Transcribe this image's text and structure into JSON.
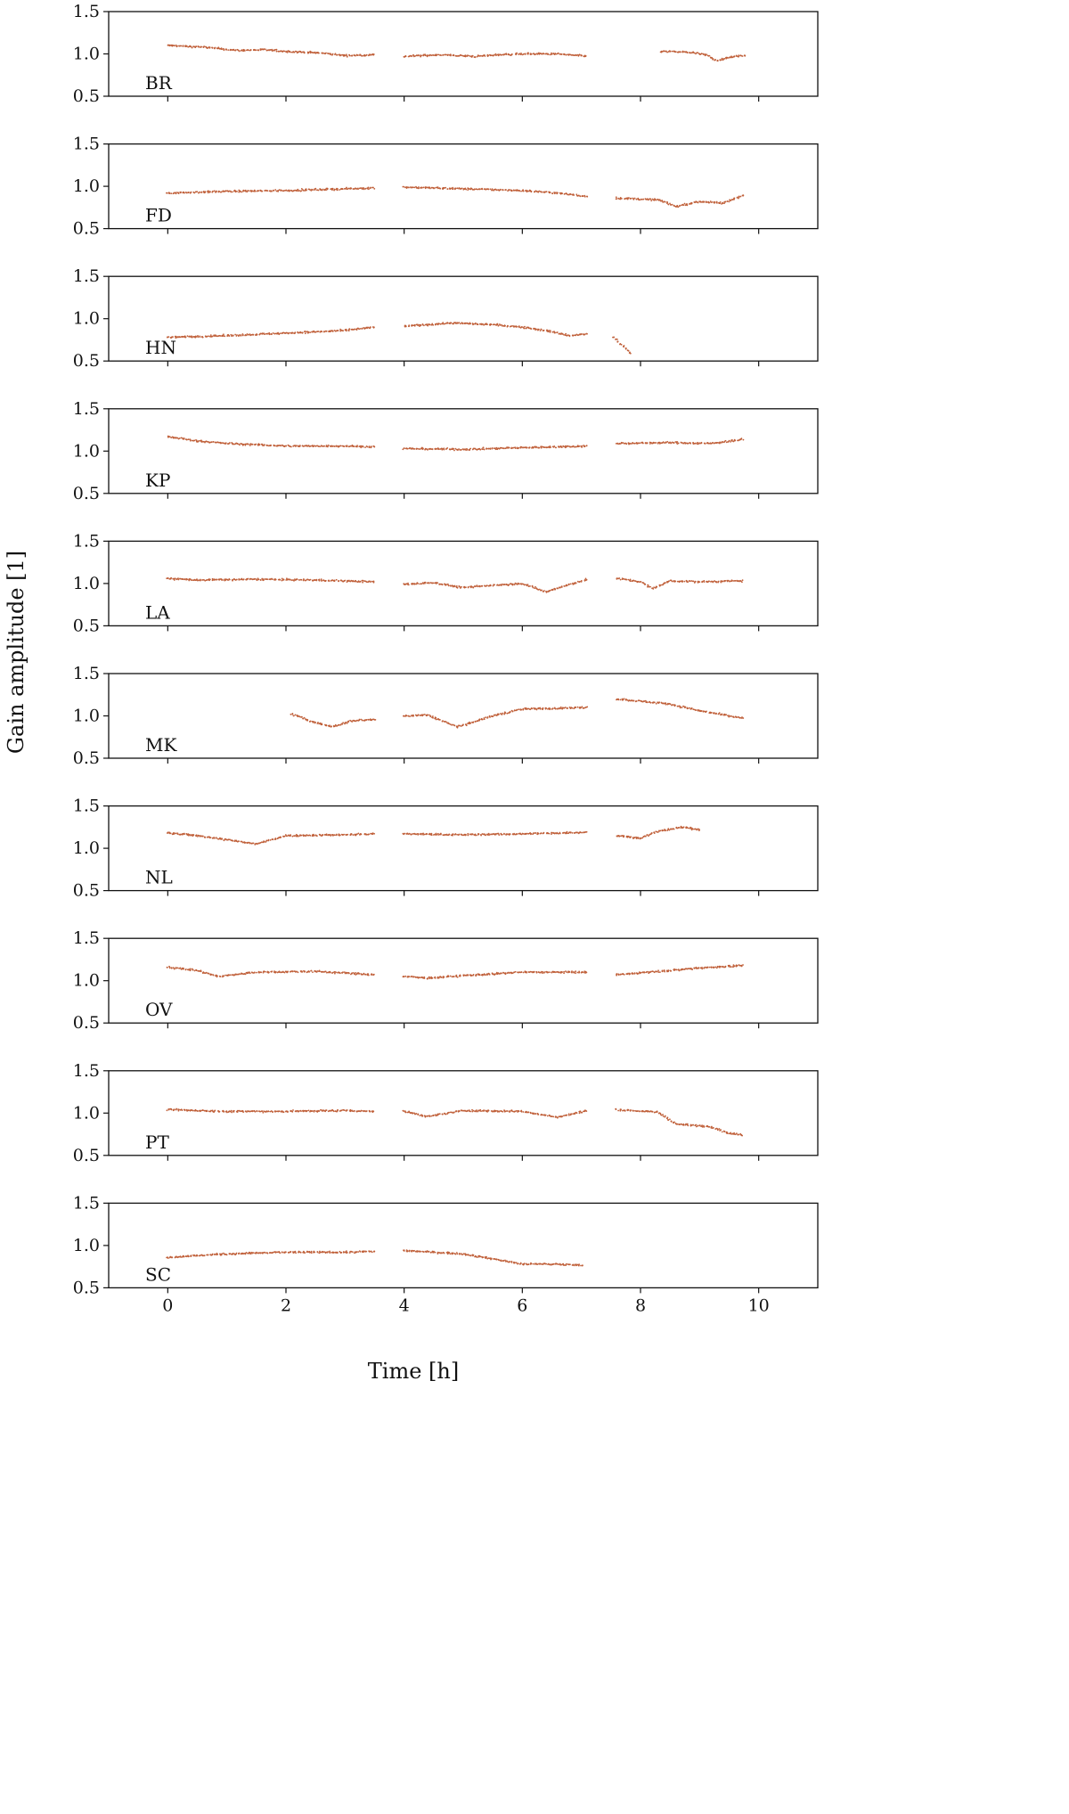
{
  "chart_data": {
    "type": "scatter",
    "layout": "10 vertically stacked panels sharing the x axis",
    "xlabel": "Time [h]",
    "ylabel": "Gain amplitude [1]",
    "xlim": [
      -1.0,
      11.0
    ],
    "ylim": [
      0.5,
      1.5
    ],
    "x_ticks": [
      {
        "value": 0,
        "label": "0"
      },
      {
        "value": 2,
        "label": "2"
      },
      {
        "value": 4,
        "label": "4"
      },
      {
        "value": 6,
        "label": "6"
      },
      {
        "value": 8,
        "label": "8"
      },
      {
        "value": 10,
        "label": "10"
      }
    ],
    "y_ticks": [
      {
        "value": 0.5,
        "label": "0.5"
      },
      {
        "value": 1.0,
        "label": "1.0"
      },
      {
        "value": 1.5,
        "label": "1.5"
      }
    ],
    "grid": false,
    "marker_color": "#c0603a",
    "sample_step_h": 0.04,
    "panels": [
      {
        "label": "BR",
        "segments": [
          {
            "x": [
              0.0,
              0.6,
              1.2,
              1.6,
              2.0,
              2.6,
              3.0,
              3.5
            ],
            "y": [
              1.1,
              1.08,
              1.04,
              1.05,
              1.03,
              1.01,
              0.98,
              0.99
            ]
          },
          {
            "x": [
              4.0,
              4.6,
              5.2,
              5.6,
              6.0,
              6.6,
              7.1
            ],
            "y": [
              0.97,
              0.99,
              0.97,
              0.99,
              1.0,
              1.0,
              0.97
            ]
          },
          {
            "x": [
              8.35,
              8.8,
              9.1,
              9.3,
              9.5,
              9.75
            ],
            "y": [
              1.03,
              1.02,
              0.99,
              0.92,
              0.96,
              0.98
            ]
          }
        ]
      },
      {
        "label": "FD",
        "segments": [
          {
            "x": [
              0.0,
              1.0,
              2.0,
              3.0,
              3.5
            ],
            "y": [
              0.92,
              0.94,
              0.95,
              0.97,
              0.98
            ]
          },
          {
            "x": [
              4.0,
              5.0,
              6.0,
              6.6,
              7.1
            ],
            "y": [
              0.99,
              0.97,
              0.95,
              0.92,
              0.88
            ]
          },
          {
            "x": [
              7.6,
              8.3,
              8.6,
              9.0,
              9.4,
              9.75
            ],
            "y": [
              0.86,
              0.84,
              0.76,
              0.82,
              0.8,
              0.9
            ]
          }
        ]
      },
      {
        "label": "HN",
        "segments": [
          {
            "x": [
              0.0,
              1.0,
              2.0,
              3.0,
              3.5
            ],
            "y": [
              0.78,
              0.8,
              0.83,
              0.86,
              0.9
            ]
          },
          {
            "x": [
              4.0,
              4.8,
              5.5,
              6.0,
              6.4,
              6.8,
              7.1
            ],
            "y": [
              0.91,
              0.95,
              0.93,
              0.9,
              0.86,
              0.8,
              0.82
            ]
          },
          {
            "x": [
              7.55,
              7.7,
              7.85
            ],
            "y": [
              0.78,
              0.68,
              0.58
            ]
          }
        ]
      },
      {
        "label": "KP",
        "segments": [
          {
            "x": [
              0.0,
              0.5,
              1.0,
              2.0,
              3.0,
              3.5
            ],
            "y": [
              1.17,
              1.12,
              1.09,
              1.06,
              1.06,
              1.05
            ]
          },
          {
            "x": [
              4.0,
              5.0,
              6.0,
              7.1
            ],
            "y": [
              1.03,
              1.02,
              1.04,
              1.06
            ]
          },
          {
            "x": [
              7.6,
              8.5,
              9.2,
              9.75
            ],
            "y": [
              1.09,
              1.1,
              1.09,
              1.14
            ]
          }
        ]
      },
      {
        "label": "LA",
        "segments": [
          {
            "x": [
              0.0,
              0.5,
              1.5,
              2.5,
              3.0,
              3.5
            ],
            "y": [
              1.06,
              1.04,
              1.05,
              1.04,
              1.03,
              1.02
            ]
          },
          {
            "x": [
              4.0,
              4.5,
              5.0,
              5.5,
              6.0,
              6.4,
              7.1
            ],
            "y": [
              0.99,
              1.01,
              0.95,
              0.98,
              1.0,
              0.9,
              1.05
            ]
          },
          {
            "x": [
              7.6,
              8.0,
              8.2,
              8.5,
              9.0,
              9.75
            ],
            "y": [
              1.06,
              1.02,
              0.94,
              1.03,
              1.02,
              1.03
            ]
          }
        ]
      },
      {
        "label": "MK",
        "segments": [
          {
            "x": [
              2.1,
              2.5,
              2.8,
              3.1,
              3.5
            ],
            "y": [
              1.02,
              0.92,
              0.87,
              0.94,
              0.96
            ]
          },
          {
            "x": [
              4.0,
              4.4,
              4.9,
              5.5,
              6.0,
              7.1
            ],
            "y": [
              1.0,
              1.01,
              0.87,
              1.0,
              1.08,
              1.1
            ]
          },
          {
            "x": [
              7.6,
              8.5,
              9.0,
              9.75
            ],
            "y": [
              1.2,
              1.14,
              1.06,
              0.97
            ]
          }
        ]
      },
      {
        "label": "NL",
        "segments": [
          {
            "x": [
              0.0,
              0.5,
              1.0,
              1.5,
              2.0,
              3.0,
              3.5
            ],
            "y": [
              1.18,
              1.15,
              1.1,
              1.05,
              1.15,
              1.16,
              1.17
            ]
          },
          {
            "x": [
              4.0,
              5.0,
              6.0,
              7.1
            ],
            "y": [
              1.17,
              1.16,
              1.17,
              1.19
            ]
          },
          {
            "x": [
              7.6,
              8.0,
              8.3,
              8.7,
              9.0
            ],
            "y": [
              1.15,
              1.12,
              1.2,
              1.25,
              1.22
            ]
          }
        ]
      },
      {
        "label": "OV",
        "segments": [
          {
            "x": [
              0.0,
              0.5,
              0.85,
              1.5,
              2.5,
              3.5
            ],
            "y": [
              1.16,
              1.12,
              1.05,
              1.1,
              1.11,
              1.07
            ]
          },
          {
            "x": [
              4.0,
              4.4,
              5.0,
              5.5,
              6.0,
              7.1
            ],
            "y": [
              1.05,
              1.03,
              1.06,
              1.08,
              1.1,
              1.1
            ]
          },
          {
            "x": [
              7.6,
              8.5,
              9.0,
              9.75
            ],
            "y": [
              1.07,
              1.12,
              1.15,
              1.18
            ]
          }
        ]
      },
      {
        "label": "PT",
        "segments": [
          {
            "x": [
              0.0,
              1.0,
              2.0,
              3.0,
              3.5
            ],
            "y": [
              1.04,
              1.02,
              1.02,
              1.03,
              1.02
            ]
          },
          {
            "x": [
              4.0,
              4.4,
              5.0,
              6.0,
              6.6,
              7.1
            ],
            "y": [
              1.02,
              0.96,
              1.03,
              1.02,
              0.95,
              1.03
            ]
          },
          {
            "x": [
              7.6,
              8.3,
              8.6,
              9.2,
              9.5,
              9.75
            ],
            "y": [
              1.04,
              1.01,
              0.87,
              0.84,
              0.76,
              0.74
            ]
          }
        ]
      },
      {
        "label": "SC",
        "segments": [
          {
            "x": [
              0.0,
              1.0,
              2.0,
              3.0,
              3.5
            ],
            "y": [
              0.86,
              0.9,
              0.92,
              0.92,
              0.93
            ]
          },
          {
            "x": [
              4.0,
              5.0,
              5.6,
              6.0,
              6.5,
              7.0
            ],
            "y": [
              0.94,
              0.9,
              0.83,
              0.78,
              0.78,
              0.77
            ]
          }
        ]
      }
    ]
  }
}
